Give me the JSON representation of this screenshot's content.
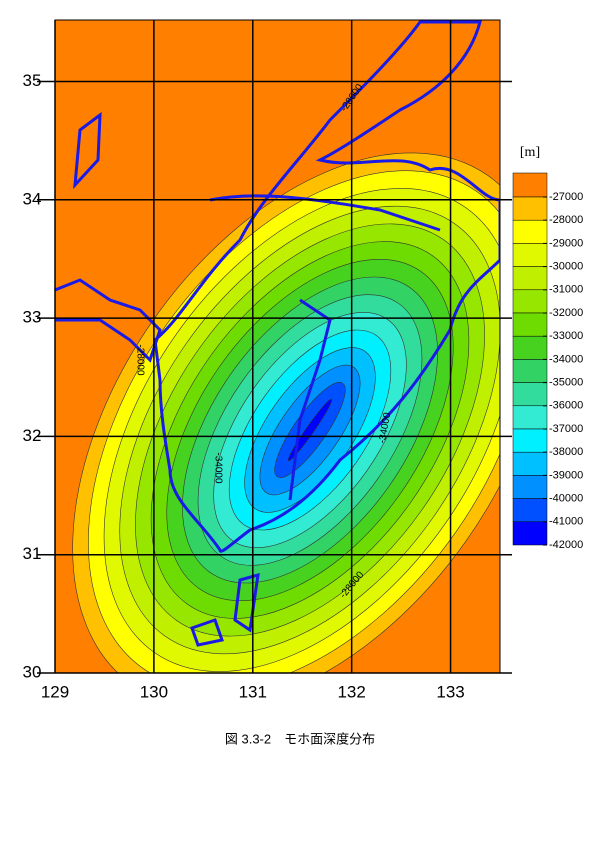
{
  "map": {
    "xlim": [
      129,
      133.5
    ],
    "ylim": [
      30,
      35.52
    ],
    "xticks": [
      129,
      130,
      131,
      132,
      133
    ],
    "yticks": [
      30,
      31,
      32,
      33,
      34,
      35
    ],
    "colorbar": {
      "unit": "[m]",
      "levels": [
        -27000,
        -28000,
        -29000,
        -30000,
        -31000,
        -32000,
        -33000,
        -34000,
        -35000,
        -36000,
        -37000,
        -38000,
        -39000,
        -40000,
        -41000,
        -42000
      ],
      "colors": [
        "#ff8000",
        "#ffc000",
        "#ffff00",
        "#e0f800",
        "#c0f000",
        "#96e600",
        "#6edc00",
        "#46d21e",
        "#32d264",
        "#32dc9c",
        "#32ebd2",
        "#00f0ff",
        "#00c0ff",
        "#0090ff",
        "#0050ff",
        "#0000ff"
      ]
    },
    "contour_labels": [
      "-28000",
      "-28000",
      "-34000",
      "-34000",
      "-28000"
    ],
    "caption": "図 3.3-2　モホ面深度分布"
  }
}
